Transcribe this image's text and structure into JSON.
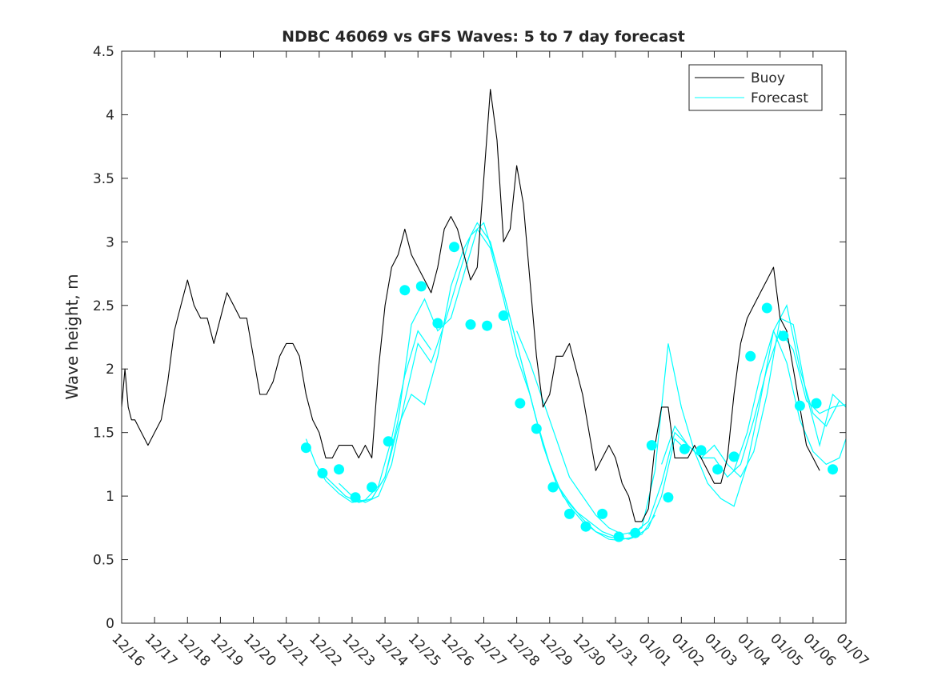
{
  "chart_data": {
    "type": "line",
    "title": "NDBC 46069 vs GFS Waves: 5 to 7 day forecast",
    "xlabel": "",
    "ylabel": "Wave height, m",
    "ylim": [
      0,
      4.5
    ],
    "xlim": [
      0,
      22
    ],
    "yticks": [
      0,
      0.5,
      1,
      1.5,
      2,
      2.5,
      3,
      3.5,
      4,
      4.5
    ],
    "ytick_labels": [
      "0",
      "0.5",
      "1",
      "1.5",
      "2",
      "2.5",
      "3",
      "3.5",
      "4",
      "4.5"
    ],
    "xtick_labels": [
      "12/16",
      "12/17",
      "12/18",
      "12/19",
      "12/20",
      "12/21",
      "12/22",
      "12/23",
      "12/24",
      "12/25",
      "12/26",
      "12/27",
      "12/28",
      "12/29",
      "12/30",
      "12/31",
      "01/01",
      "01/02",
      "01/03",
      "01/04",
      "01/05",
      "01/06",
      "01/07"
    ],
    "grid": false,
    "legend_position": "top-right",
    "colors": {
      "buoy": "#000000",
      "forecast": "#00ffff",
      "axis": "#262626"
    },
    "series": [
      {
        "name": "Buoy",
        "x": [
          0,
          0.1,
          0.2,
          0.3,
          0.4,
          0.6,
          0.8,
          1.0,
          1.2,
          1.4,
          1.6,
          1.8,
          2.0,
          2.2,
          2.4,
          2.6,
          2.8,
          3.0,
          3.2,
          3.4,
          3.6,
          3.8,
          4.0,
          4.2,
          4.4,
          4.6,
          4.8,
          5.0,
          5.2,
          5.4,
          5.6,
          5.8,
          6.0,
          6.2,
          6.4,
          6.6,
          6.8,
          7.0,
          7.2,
          7.4,
          7.6,
          7.8,
          8.0,
          8.2,
          8.4,
          8.6,
          8.8,
          9.0,
          9.2,
          9.4,
          9.6,
          9.8,
          10.0,
          10.2,
          10.4,
          10.6,
          10.8,
          11.0,
          11.2,
          11.4,
          11.6,
          11.8,
          12.0,
          12.2,
          12.4,
          12.6,
          12.8,
          13.0,
          13.2,
          13.4,
          13.6,
          13.8,
          14.0,
          14.2,
          14.4,
          14.6,
          14.8,
          15.0,
          15.2,
          15.4,
          15.6,
          15.8,
          16.0,
          16.2,
          16.4,
          16.6,
          16.8,
          17.0,
          17.2,
          17.4,
          17.6,
          17.8,
          18.0,
          18.2,
          18.4,
          18.6,
          18.8,
          19.0,
          19.2,
          19.4,
          19.6,
          19.8,
          20.0,
          20.2,
          20.4,
          20.6,
          20.8,
          21.0,
          21.2
        ],
        "values": [
          1.7,
          2.0,
          1.7,
          1.6,
          1.6,
          1.5,
          1.4,
          1.5,
          1.6,
          1.9,
          2.3,
          2.5,
          2.7,
          2.5,
          2.4,
          2.4,
          2.2,
          2.4,
          2.6,
          2.5,
          2.4,
          2.4,
          2.1,
          1.8,
          1.8,
          1.9,
          2.1,
          2.2,
          2.2,
          2.1,
          1.8,
          1.6,
          1.5,
          1.3,
          1.3,
          1.4,
          1.4,
          1.4,
          1.3,
          1.4,
          1.3,
          2.0,
          2.5,
          2.8,
          2.9,
          3.1,
          2.9,
          2.8,
          2.7,
          2.6,
          2.8,
          3.1,
          3.2,
          3.1,
          2.9,
          2.7,
          2.8,
          3.5,
          4.2,
          3.8,
          3.0,
          3.1,
          3.6,
          3.3,
          2.7,
          2.1,
          1.7,
          1.8,
          2.1,
          2.1,
          2.2,
          2.0,
          1.8,
          1.5,
          1.2,
          1.3,
          1.4,
          1.3,
          1.1,
          1.0,
          0.8,
          0.8,
          0.9,
          1.4,
          1.7,
          1.7,
          1.3,
          1.3,
          1.3,
          1.4,
          1.3,
          1.2,
          1.1,
          1.1,
          1.3,
          1.8,
          2.2,
          2.4,
          2.5,
          2.6,
          2.7,
          2.8,
          2.4,
          2.3,
          2.0,
          1.7,
          1.4,
          1.3,
          1.2
        ]
      },
      {
        "name": "Forecast",
        "segments": [
          {
            "x": [
              5.6,
              5.9,
              6.2,
              6.6,
              7.0,
              7.4,
              7.8,
              8.2,
              8.6,
              9.0,
              9.4
            ],
            "values": [
              1.45,
              1.25,
              1.12,
              1.02,
              0.95,
              0.97,
              1.08,
              1.45,
              1.95,
              2.3,
              2.15
            ]
          },
          {
            "x": [
              6.0,
              6.4,
              6.8,
              7.2,
              7.6,
              8.0,
              8.4,
              8.8,
              9.2,
              9.6,
              10.0,
              10.4,
              10.8,
              11.2,
              11.6,
              12.0,
              12.4,
              12.8,
              13.2,
              13.6,
              14.0,
              14.4,
              14.8,
              15.2
            ],
            "values": [
              1.2,
              1.1,
              1.0,
              0.95,
              0.98,
              1.15,
              1.6,
              2.35,
              2.55,
              2.3,
              2.4,
              2.75,
              3.1,
              2.95,
              2.55,
              2.1,
              1.8,
              1.4,
              1.1,
              0.95,
              0.82,
              0.72,
              0.66,
              0.65
            ]
          },
          {
            "x": [
              6.6,
              7.0,
              7.4,
              7.8,
              8.2,
              8.6,
              9.0,
              9.4,
              9.8,
              10.2,
              10.6,
              11.0,
              11.4,
              11.8,
              12.2,
              12.6,
              13.0,
              13.4,
              13.8,
              14.2,
              14.6,
              15.0,
              15.4,
              15.8,
              16.2
            ],
            "values": [
              1.1,
              1.0,
              0.95,
              1.0,
              1.25,
              1.75,
              2.2,
              2.05,
              2.35,
              2.7,
              3.05,
              3.15,
              2.8,
              2.4,
              2.0,
              1.6,
              1.25,
              1.0,
              0.88,
              0.8,
              0.72,
              0.68,
              0.66,
              0.7,
              0.85
            ]
          },
          {
            "x": [
              7.2,
              7.6,
              8.0,
              8.4,
              8.8,
              9.2,
              9.6,
              10.0,
              10.4,
              10.8,
              11.2,
              11.6,
              12.0,
              12.4,
              12.8,
              13.2,
              13.6,
              14.0,
              14.4,
              14.8,
              15.2,
              15.6,
              16.0,
              16.4,
              16.8,
              17.2
            ],
            "values": [
              0.95,
              0.98,
              1.15,
              1.55,
              1.8,
              1.72,
              2.1,
              2.65,
              2.95,
              3.15,
              3.0,
              2.6,
              2.2,
              1.8,
              1.4,
              1.1,
              0.92,
              0.8,
              0.72,
              0.68,
              0.66,
              0.68,
              0.75,
              1.0,
              1.45,
              1.35
            ]
          },
          {
            "x": [
              12.0,
              12.4,
              12.8,
              13.2,
              13.6,
              14.0,
              14.4,
              14.8,
              15.2,
              15.6,
              16.0,
              16.4,
              16.8,
              17.2,
              17.6,
              18.0,
              18.4,
              18.8,
              19.2,
              19.6,
              20.0,
              20.4,
              20.8,
              21.2,
              21.6,
              22.0
            ],
            "values": [
              2.3,
              2.05,
              1.75,
              1.45,
              1.15,
              1.0,
              0.85,
              0.75,
              0.7,
              0.72,
              0.8,
              1.1,
              1.5,
              1.4,
              1.3,
              1.3,
              1.15,
              1.25,
              1.6,
              2.0,
              2.3,
              2.15,
              1.75,
              1.65,
              1.7,
              1.72
            ]
          },
          {
            "x": [
              15.4,
              15.8,
              16.2,
              16.6,
              17.0,
              17.4,
              17.8,
              18.2,
              18.6,
              19.0,
              19.4,
              19.8,
              20.2,
              20.6,
              21.0,
              21.4,
              21.8,
              22.0
            ],
            "values": [
              0.7,
              0.75,
              1.2,
              2.2,
              1.7,
              1.35,
              1.1,
              0.98,
              0.92,
              1.25,
              1.75,
              2.3,
              2.5,
              2.0,
              1.65,
              1.55,
              1.75,
              1.7
            ]
          },
          {
            "x": [
              16.4,
              16.8,
              17.2,
              17.6,
              18.0,
              18.4,
              18.8,
              19.2,
              19.6,
              20.0,
              20.4,
              20.8,
              21.2,
              21.6,
              22.0
            ],
            "values": [
              1.25,
              1.55,
              1.4,
              1.3,
              1.4,
              1.25,
              1.15,
              1.35,
              1.8,
              2.4,
              2.35,
              1.8,
              1.4,
              1.8,
              1.7
            ]
          },
          {
            "x": [
              18.6,
              19.0,
              19.4,
              19.8,
              20.2,
              20.6,
              21.0,
              21.4,
              21.8,
              22.0
            ],
            "values": [
              1.2,
              1.5,
              1.95,
              2.3,
              2.05,
              1.6,
              1.35,
              1.25,
              1.3,
              1.45
            ]
          }
        ],
        "markers": {
          "x": [
            5.6,
            6.1,
            6.6,
            7.1,
            7.6,
            8.1,
            8.6,
            9.1,
            9.6,
            10.1,
            10.6,
            11.1,
            11.6,
            12.1,
            12.6,
            13.1,
            13.6,
            14.1,
            14.6,
            15.1,
            15.6,
            16.1,
            16.6,
            17.1,
            17.6,
            18.1,
            18.6,
            19.1,
            19.6,
            20.1,
            20.6,
            21.1,
            21.6
          ],
          "values": [
            1.38,
            1.18,
            1.21,
            0.99,
            1.07,
            1.43,
            2.62,
            2.65,
            2.36,
            2.96,
            2.35,
            2.34,
            2.42,
            1.73,
            1.53,
            1.07,
            0.86,
            0.76,
            0.86,
            0.68,
            0.71,
            1.4,
            0.99,
            1.37,
            1.36,
            1.21,
            1.31,
            2.1,
            2.48,
            2.26,
            1.71,
            1.73,
            1.21
          ]
        }
      }
    ]
  }
}
